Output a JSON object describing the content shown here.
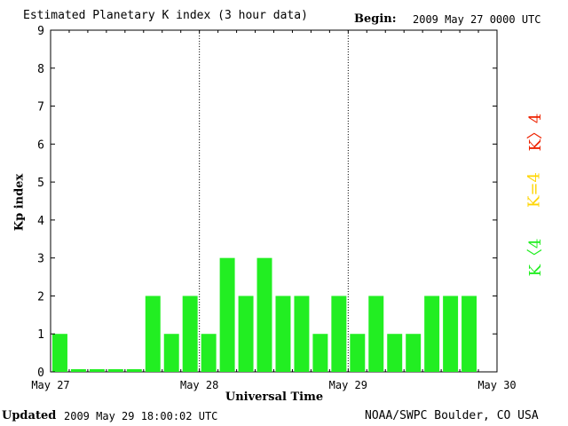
{
  "header": {
    "title": "Estimated Planetary K index (3 hour data)",
    "begin_label": "Begin:",
    "begin_value": "2009 May 27 0000 UTC"
  },
  "footer": {
    "updated_label": "Updated",
    "updated_value": "2009 May 29 18:00:02 UTC",
    "credit": "NOAA/SWPC Boulder, CO USA"
  },
  "legend": {
    "red": "K〉4",
    "yellow": "K=4",
    "green": "K〈4",
    "colors": {
      "red": "#ee2200",
      "yellow": "#ffd500",
      "green": "#22ee22"
    }
  },
  "chart_data": {
    "type": "bar",
    "xlabel": "Universal Time",
    "ylabel": "Kp index",
    "ylim": [
      0,
      9
    ],
    "yticks": [
      "0",
      "1",
      "2",
      "3",
      "4",
      "5",
      "6",
      "7",
      "8",
      "9"
    ],
    "xticks": [
      "May 27",
      "May 28",
      "May 29",
      "May 30"
    ],
    "interval_hours": 3,
    "values": [
      1,
      0,
      0,
      0,
      0,
      2,
      1,
      2,
      1,
      3,
      2,
      3,
      2,
      2,
      1,
      2,
      1,
      2,
      1,
      1,
      2,
      2,
      2
    ],
    "bar_color": "#22ee22",
    "day_separators": true
  }
}
